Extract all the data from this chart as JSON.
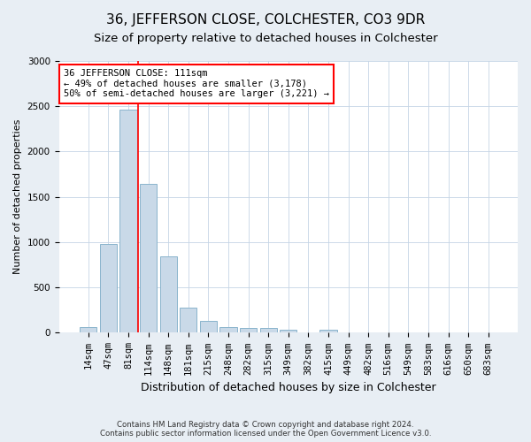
{
  "title": "36, JEFFERSON CLOSE, COLCHESTER, CO3 9DR",
  "subtitle": "Size of property relative to detached houses in Colchester",
  "xlabel": "Distribution of detached houses by size in Colchester",
  "ylabel": "Number of detached properties",
  "categories": [
    "14sqm",
    "47sqm",
    "81sqm",
    "114sqm",
    "148sqm",
    "181sqm",
    "215sqm",
    "248sqm",
    "282sqm",
    "315sqm",
    "349sqm",
    "382sqm",
    "415sqm",
    "449sqm",
    "482sqm",
    "516sqm",
    "549sqm",
    "583sqm",
    "616sqm",
    "650sqm",
    "683sqm"
  ],
  "values": [
    60,
    980,
    2460,
    1640,
    840,
    280,
    130,
    60,
    50,
    55,
    30,
    0,
    35,
    0,
    0,
    0,
    0,
    0,
    0,
    0,
    0
  ],
  "bar_color": "#c9d9e8",
  "bar_edge_color": "#8ab4cc",
  "bar_edge_width": 0.7,
  "property_line_x": 2.5,
  "annotation_text": "36 JEFFERSON CLOSE: 111sqm\n← 49% of detached houses are smaller (3,178)\n50% of semi-detached houses are larger (3,221) →",
  "annotation_box_color": "white",
  "annotation_box_edge_color": "red",
  "line_color": "red",
  "ylim": [
    0,
    3000
  ],
  "yticks": [
    0,
    500,
    1000,
    1500,
    2000,
    2500,
    3000
  ],
  "title_fontsize": 11,
  "subtitle_fontsize": 9.5,
  "xlabel_fontsize": 9,
  "ylabel_fontsize": 8,
  "tick_fontsize": 7.5,
  "annotation_fontsize": 7.5,
  "footer_text": "Contains HM Land Registry data © Crown copyright and database right 2024.\nContains public sector information licensed under the Open Government Licence v3.0.",
  "background_color": "#e8eef4",
  "plot_bg_color": "#ffffff",
  "grid_color": "#c5d5e5"
}
